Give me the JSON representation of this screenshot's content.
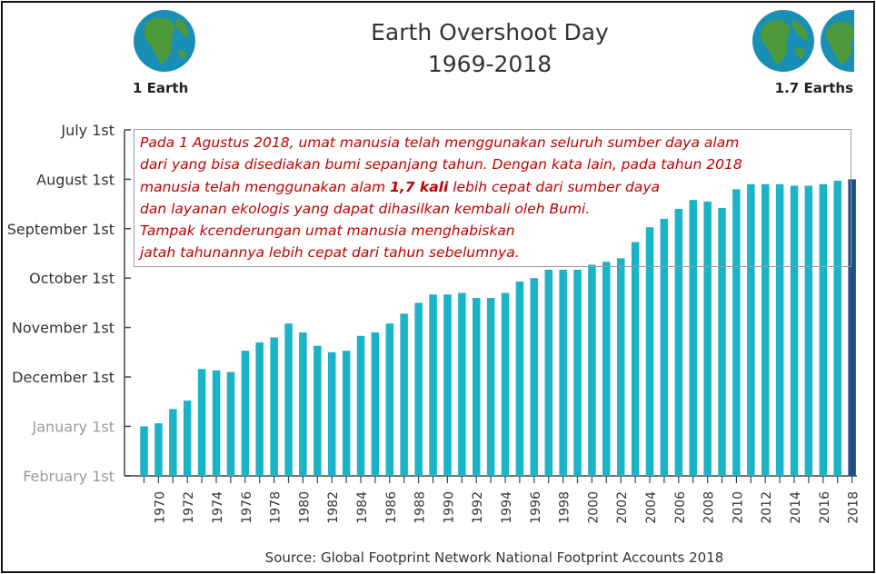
{
  "chart_data": {
    "type": "bar",
    "title": "Earth Overshoot Day",
    "subtitle": "1969-2018",
    "source": "Source: Global Footprint Network National Footprint Accounts 2018",
    "left_label": "1 Earth",
    "right_label": "1.7 Earths",
    "y_ticks": [
      {
        "label": "July 1st",
        "v": 0
      },
      {
        "label": "August 1st",
        "v": 1
      },
      {
        "label": "September 1st",
        "v": 2
      },
      {
        "label": "October 1st",
        "v": 3
      },
      {
        "label": "November 1st",
        "v": 4
      },
      {
        "label": "December 1st",
        "v": 5
      },
      {
        "label": "January 1st",
        "v": 6
      },
      {
        "label": "February 1st",
        "v": 7
      }
    ],
    "x_tick_labels": [
      "1970",
      "1972",
      "1974",
      "1976",
      "1978",
      "1980",
      "1982",
      "1984",
      "1986",
      "1988",
      "1990",
      "1992",
      "1994",
      "1996",
      "1998",
      "2000",
      "2002",
      "2004",
      "2006",
      "2008",
      "2010",
      "2012",
      "2014",
      "2016",
      "2018"
    ],
    "categories": [
      "1969",
      "1970",
      "1971",
      "1972",
      "1973",
      "1974",
      "1975",
      "1976",
      "1977",
      "1978",
      "1979",
      "1980",
      "1981",
      "1982",
      "1983",
      "1984",
      "1985",
      "1986",
      "1987",
      "1988",
      "1989",
      "1990",
      "1991",
      "1992",
      "1993",
      "1994",
      "1995",
      "1996",
      "1997",
      "1998",
      "1999",
      "2000",
      "2001",
      "2002",
      "2003",
      "2004",
      "2005",
      "2006",
      "2007",
      "2008",
      "2009",
      "2010",
      "2011",
      "2012",
      "2013",
      "2014",
      "2015",
      "2016",
      "2017",
      "2018"
    ],
    "values": [
      "Dec 31",
      "Dec 29",
      "Dec 20",
      "Dec 15",
      "Nov 26",
      "Nov 27",
      "Nov 28",
      "Nov 15",
      "Nov 10",
      "Nov 7",
      "Oct 29",
      "Nov 4",
      "Nov 12",
      "Nov 16",
      "Nov 15",
      "Nov 6",
      "Nov 4",
      "Oct 29",
      "Oct 23",
      "Oct 16",
      "Oct 11",
      "Oct 11",
      "Oct 10",
      "Oct 13",
      "Oct 13",
      "Oct 10",
      "Oct 3",
      "Oct 1",
      "Sep 26",
      "Sep 26",
      "Sep 26",
      "Sep 23",
      "Sep 21",
      "Sep 19",
      "Sep 9",
      "Aug 31",
      "Aug 26",
      "Aug 20",
      "Aug 14",
      "Aug 15",
      "Aug 19",
      "Aug 7",
      "Aug 4",
      "Aug 4",
      "Aug 4",
      "Aug 5",
      "Aug 5",
      "Aug 4",
      "Aug 2",
      "Aug 1"
    ],
    "y_values_months_after_july1": [
      6.0,
      5.94,
      5.65,
      5.48,
      4.84,
      4.87,
      4.9,
      4.47,
      4.3,
      4.2,
      3.92,
      4.1,
      4.37,
      4.5,
      4.47,
      4.17,
      4.1,
      3.92,
      3.72,
      3.5,
      3.33,
      3.33,
      3.3,
      3.4,
      3.4,
      3.3,
      3.07,
      3.0,
      2.83,
      2.83,
      2.83,
      2.73,
      2.67,
      2.6,
      2.27,
      1.97,
      1.8,
      1.6,
      1.42,
      1.45,
      1.58,
      1.2,
      1.1,
      1.1,
      1.1,
      1.13,
      1.13,
      1.1,
      1.03,
      1.0
    ],
    "ylim": [
      0,
      7
    ],
    "bar_color": "#1bb3c7",
    "highlight_color": "#1f4e8c",
    "highlight_year": "2018",
    "grid": false
  },
  "annotation": {
    "line1": "Pada 1 Agustus 2018, umat manusia telah menggunakan seluruh sumber daya alam",
    "line2": "dari yang bisa disediakan bumi sepanjang tahun. Dengan kata lain, pada tahun 2018",
    "line3_before": "manusia telah menggunakan alam ",
    "line3_bold": "1,7 kali",
    "line3_after": " lebih cepat dari sumber daya",
    "line4": "dan layanan ekologis yang dapat dihasilkan kembali oleh Bumi.",
    "line5": "Tampak kcenderungan umat manusia menghabiskan",
    "line6": "jatah tahunannya lebih cepat dari tahun sebelumnya.",
    "color": "#c00000"
  },
  "icons": {
    "left_globe": "earth-globe-icon",
    "right_globes": "earth-globe-icon"
  },
  "colors": {
    "ocean": "#1a8fb5",
    "land": "#4c9a3c",
    "axis": "#444444",
    "text": "#333333"
  }
}
